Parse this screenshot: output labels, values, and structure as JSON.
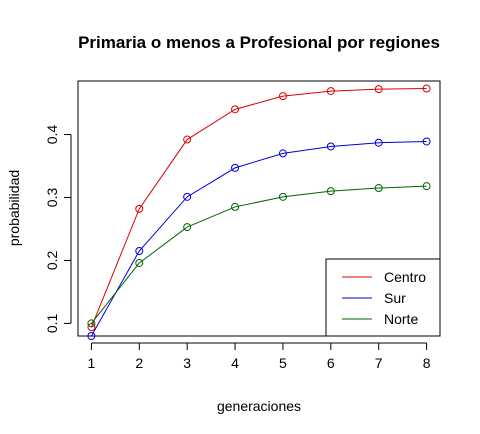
{
  "chart_data": {
    "type": "line",
    "title": "Primaria o menos a Profesional por regiones",
    "xlabel": "generaciones",
    "ylabel": "probabilidad",
    "x": [
      1,
      2,
      3,
      4,
      5,
      6,
      7,
      8
    ],
    "xlim": [
      0.72,
      8.28
    ],
    "ylim": [
      0.08,
      0.485
    ],
    "xticks": [
      1,
      2,
      3,
      4,
      5,
      6,
      7,
      8
    ],
    "yticks": [
      0.1,
      0.2,
      0.3,
      0.4
    ],
    "ytick_labels": [
      "0.1",
      "0.2",
      "0.3",
      "0.4"
    ],
    "grid": false,
    "legend_position": "bottom-right",
    "series": [
      {
        "name": "Centro",
        "color": "#dd0000",
        "values": [
          0.094,
          0.282,
          0.392,
          0.44,
          0.461,
          0.469,
          0.472,
          0.473
        ]
      },
      {
        "name": "Sur",
        "color": "#0000dd",
        "values": [
          0.08,
          0.215,
          0.301,
          0.347,
          0.37,
          0.381,
          0.387,
          0.389
        ]
      },
      {
        "name": "Norte",
        "color": "#006400",
        "values": [
          0.1,
          0.196,
          0.253,
          0.285,
          0.301,
          0.31,
          0.315,
          0.318
        ]
      }
    ]
  }
}
